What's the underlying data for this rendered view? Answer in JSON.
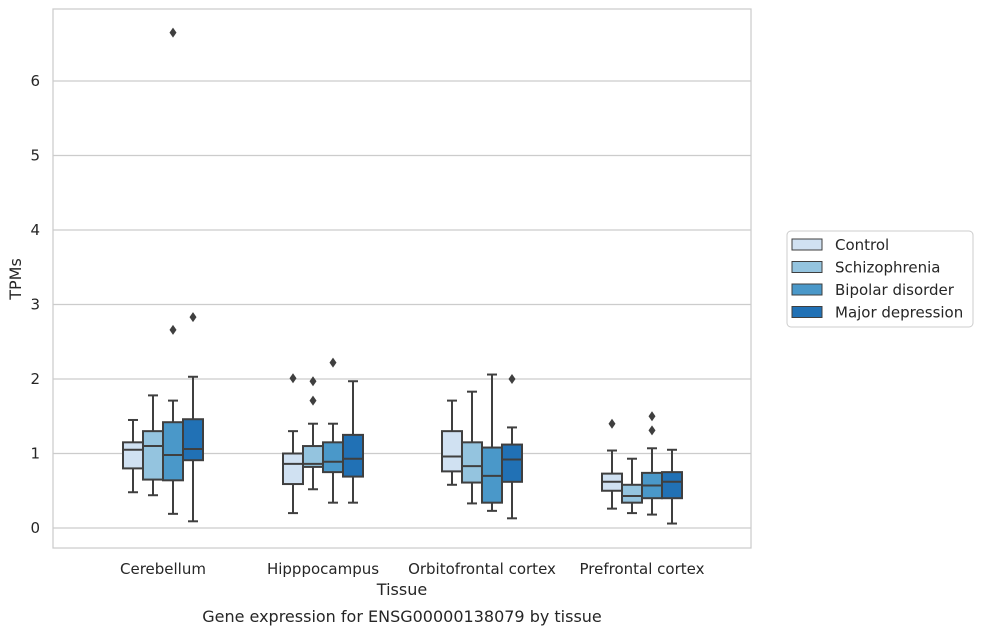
{
  "chart_data": {
    "type": "boxplot",
    "caption": "Gene expression for ENSG00000138079 by tissue",
    "xlabel": "Tissue",
    "ylabel": "TPMs",
    "ylim": [
      -0.25,
      7.0
    ],
    "yticks": [
      0,
      1,
      2,
      3,
      4,
      5,
      6
    ],
    "grid": "horizontal",
    "legend_position": "right",
    "categories": [
      "Cerebellum",
      "Hipppocampus",
      "Orbitofrontal cortex",
      "Prefrontal cortex"
    ],
    "series": [
      {
        "name": "Control",
        "color": "#d0e1f2",
        "boxes": [
          {
            "whislo": 0.48,
            "q1": 0.8,
            "med": 1.05,
            "q3": 1.15,
            "whishi": 1.45,
            "fliers": []
          },
          {
            "whislo": 0.2,
            "q1": 0.59,
            "med": 0.86,
            "q3": 1.0,
            "whishi": 1.3,
            "fliers": [
              2.01
            ]
          },
          {
            "whislo": 0.58,
            "q1": 0.76,
            "med": 0.96,
            "q3": 1.3,
            "whishi": 1.71,
            "fliers": []
          },
          {
            "whislo": 0.26,
            "q1": 0.5,
            "med": 0.62,
            "q3": 0.73,
            "whishi": 1.04,
            "fliers": [
              1.4
            ]
          }
        ]
      },
      {
        "name": "Schizophrenia",
        "color": "#94c4df",
        "boxes": [
          {
            "whislo": 0.44,
            "q1": 0.65,
            "med": 1.1,
            "q3": 1.3,
            "whishi": 1.78,
            "fliers": []
          },
          {
            "whislo": 0.52,
            "q1": 0.82,
            "med": 0.86,
            "q3": 1.1,
            "whishi": 1.4,
            "fliers": [
              1.97,
              1.71
            ]
          },
          {
            "whislo": 0.33,
            "q1": 0.61,
            "med": 0.83,
            "q3": 1.15,
            "whishi": 1.83,
            "fliers": []
          },
          {
            "whislo": 0.2,
            "q1": 0.34,
            "med": 0.43,
            "q3": 0.58,
            "whishi": 0.93,
            "fliers": []
          }
        ]
      },
      {
        "name": "Bipolar disorder",
        "color": "#4a98c9",
        "boxes": [
          {
            "whislo": 0.19,
            "q1": 0.64,
            "med": 0.98,
            "q3": 1.42,
            "whishi": 1.71,
            "fliers": [
              6.65,
              2.66
            ]
          },
          {
            "whislo": 0.34,
            "q1": 0.75,
            "med": 0.89,
            "q3": 1.15,
            "whishi": 1.4,
            "fliers": [
              2.22
            ]
          },
          {
            "whislo": 0.23,
            "q1": 0.34,
            "med": 0.7,
            "q3": 1.08,
            "whishi": 2.06,
            "fliers": []
          },
          {
            "whislo": 0.18,
            "q1": 0.4,
            "med": 0.57,
            "q3": 0.74,
            "whishi": 1.07,
            "fliers": [
              1.5,
              1.31
            ]
          }
        ]
      },
      {
        "name": "Major depression",
        "color": "#2171b5",
        "boxes": [
          {
            "whislo": 0.09,
            "q1": 0.91,
            "med": 1.06,
            "q3": 1.46,
            "whishi": 2.03,
            "fliers": [
              2.83
            ]
          },
          {
            "whislo": 0.34,
            "q1": 0.69,
            "med": 0.93,
            "q3": 1.25,
            "whishi": 1.97,
            "fliers": []
          },
          {
            "whislo": 0.13,
            "q1": 0.62,
            "med": 0.92,
            "q3": 1.12,
            "whishi": 1.35,
            "fliers": [
              2.0
            ]
          },
          {
            "whislo": 0.06,
            "q1": 0.4,
            "med": 0.62,
            "q3": 0.75,
            "whishi": 1.05,
            "fliers": []
          }
        ]
      }
    ]
  }
}
